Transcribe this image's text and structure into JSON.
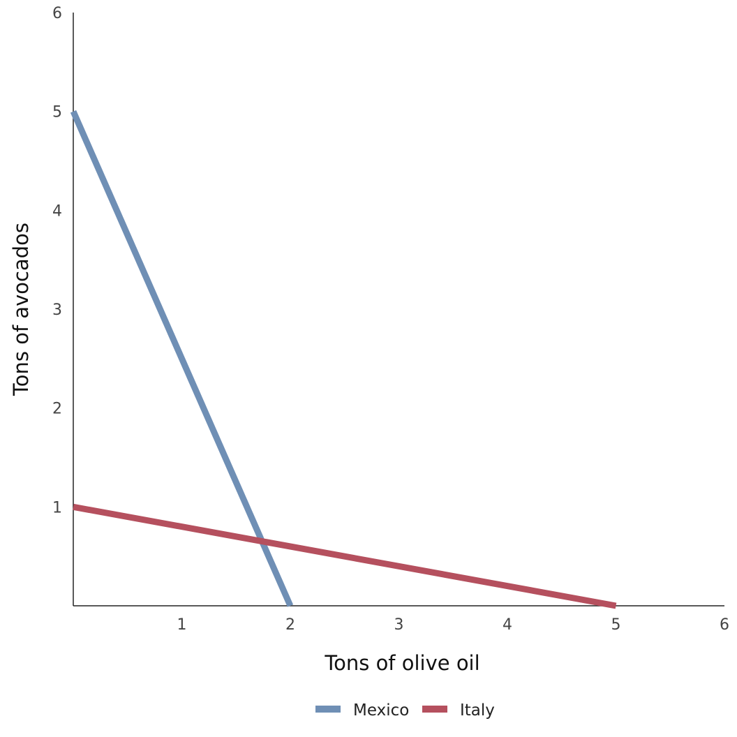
{
  "chart_data": {
    "type": "line",
    "title": "",
    "xlabel": "Tons of olive oil",
    "ylabel": "Tons of avocados",
    "xlim": [
      0,
      6
    ],
    "ylim": [
      0,
      6
    ],
    "x_ticks": [
      1,
      2,
      3,
      4,
      5,
      6
    ],
    "y_ticks": [
      1,
      2,
      3,
      4,
      5,
      6
    ],
    "grid": false,
    "legend_position": "bottom",
    "series": [
      {
        "name": "Mexico",
        "color": "#6f8fb5",
        "points": [
          [
            0,
            5
          ],
          [
            2,
            0
          ]
        ]
      },
      {
        "name": "Italy",
        "color": "#b5505e",
        "points": [
          [
            0,
            1
          ],
          [
            5,
            0
          ]
        ]
      }
    ]
  }
}
